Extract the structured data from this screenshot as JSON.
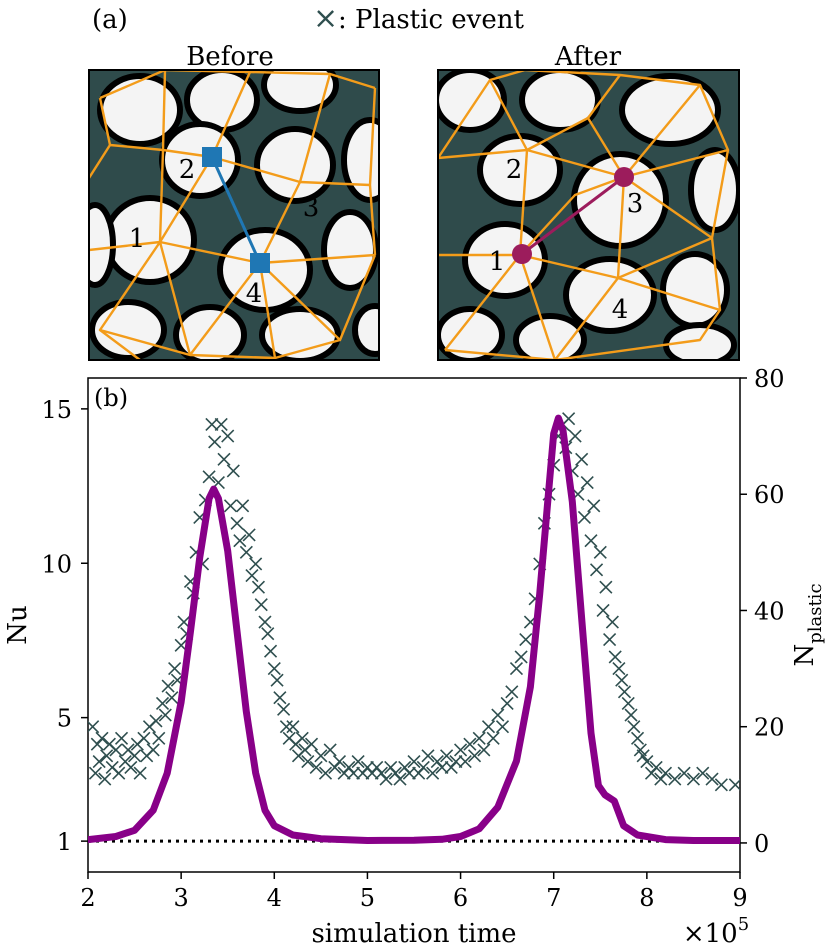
{
  "panel_a": {
    "label": "(a)",
    "legend_marker": "×",
    "legend_text": ":  Plastic event",
    "before": {
      "title": "Before",
      "cell_labels": [
        "1",
        "2",
        "3",
        "4"
      ],
      "highlight_pair": [
        "2",
        "4"
      ],
      "highlight_color": "#1f77b4"
    },
    "after": {
      "title": "After",
      "cell_labels": [
        "1",
        "2",
        "3",
        "4"
      ],
      "highlight_pair": [
        "1",
        "3"
      ],
      "highlight_color": "#9c1c5c"
    },
    "colors": {
      "foam": "#2f4b4b",
      "bubble": "#f4f4f4",
      "network": "#f39c1a"
    }
  },
  "chart_data": {
    "type": "line",
    "panel_label": "(b)",
    "xlabel": "simulation time",
    "x_multiplier": "×10^5",
    "ylabel_left": "Nu",
    "ylabel_right": "N_plastic",
    "xlim": [
      2,
      9
    ],
    "ylim_left": [
      0,
      16
    ],
    "ylim_right": [
      -5,
      80
    ],
    "xticks": [
      2,
      3,
      4,
      5,
      6,
      7,
      8,
      9
    ],
    "yticks_left": [
      1,
      5,
      10,
      15
    ],
    "yticks_right": [
      0,
      20,
      40,
      60,
      80
    ],
    "grid": false,
    "reference_line": {
      "y": 1,
      "style": "dotted",
      "color": "#000000"
    },
    "series": [
      {
        "axis": "left",
        "kind": "line",
        "color": "#880088",
        "points": [
          [
            2.0,
            1.05
          ],
          [
            2.3,
            1.15
          ],
          [
            2.5,
            1.35
          ],
          [
            2.7,
            2.0
          ],
          [
            2.85,
            3.2
          ],
          [
            3.0,
            5.5
          ],
          [
            3.1,
            7.8
          ],
          [
            3.2,
            10.2
          ],
          [
            3.3,
            12.1
          ],
          [
            3.35,
            12.4
          ],
          [
            3.4,
            12.1
          ],
          [
            3.5,
            10.4
          ],
          [
            3.6,
            7.8
          ],
          [
            3.7,
            5.2
          ],
          [
            3.8,
            3.2
          ],
          [
            3.9,
            2.0
          ],
          [
            4.0,
            1.5
          ],
          [
            4.2,
            1.2
          ],
          [
            4.5,
            1.08
          ],
          [
            5.0,
            1.02
          ],
          [
            5.5,
            1.03
          ],
          [
            5.8,
            1.06
          ],
          [
            6.0,
            1.15
          ],
          [
            6.2,
            1.4
          ],
          [
            6.4,
            2.1
          ],
          [
            6.6,
            3.6
          ],
          [
            6.75,
            6.0
          ],
          [
            6.85,
            9.0
          ],
          [
            6.95,
            12.5
          ],
          [
            7.0,
            14.2
          ],
          [
            7.05,
            14.7
          ],
          [
            7.1,
            14.3
          ],
          [
            7.2,
            12.0
          ],
          [
            7.3,
            8.2
          ],
          [
            7.4,
            4.5
          ],
          [
            7.48,
            2.8
          ],
          [
            7.55,
            2.5
          ],
          [
            7.65,
            2.3
          ],
          [
            7.75,
            1.5
          ],
          [
            7.9,
            1.2
          ],
          [
            8.2,
            1.05
          ],
          [
            8.5,
            1.02
          ],
          [
            9.0,
            1.02
          ]
        ]
      },
      {
        "axis": "right",
        "kind": "scatter",
        "marker": "x",
        "color": "#2f4f4f",
        "points": [
          [
            2.05,
            20
          ],
          [
            2.08,
            12
          ],
          [
            2.1,
            17
          ],
          [
            2.12,
            14
          ],
          [
            2.15,
            18
          ],
          [
            2.18,
            11
          ],
          [
            2.2,
            15
          ],
          [
            2.23,
            17
          ],
          [
            2.26,
            13
          ],
          [
            2.3,
            16
          ],
          [
            2.33,
            12
          ],
          [
            2.36,
            18
          ],
          [
            2.4,
            14
          ],
          [
            2.43,
            16
          ],
          [
            2.46,
            13
          ],
          [
            2.5,
            15
          ],
          [
            2.53,
            17
          ],
          [
            2.56,
            12
          ],
          [
            2.6,
            18
          ],
          [
            2.63,
            15
          ],
          [
            2.66,
            20
          ],
          [
            2.7,
            16
          ],
          [
            2.73,
            21
          ],
          [
            2.76,
            18
          ],
          [
            2.8,
            24
          ],
          [
            2.83,
            22
          ],
          [
            2.86,
            27
          ],
          [
            2.9,
            25
          ],
          [
            2.93,
            30
          ],
          [
            2.96,
            28
          ],
          [
            3.0,
            34
          ],
          [
            3.03,
            38
          ],
          [
            3.06,
            36
          ],
          [
            3.1,
            45
          ],
          [
            3.13,
            43
          ],
          [
            3.16,
            50
          ],
          [
            3.2,
            56
          ],
          [
            3.23,
            48
          ],
          [
            3.26,
            59
          ],
          [
            3.3,
            63
          ],
          [
            3.33,
            72
          ],
          [
            3.36,
            69
          ],
          [
            3.4,
            62
          ],
          [
            3.43,
            72
          ],
          [
            3.46,
            66
          ],
          [
            3.5,
            70
          ],
          [
            3.53,
            58
          ],
          [
            3.56,
            64
          ],
          [
            3.6,
            55
          ],
          [
            3.63,
            52
          ],
          [
            3.66,
            58
          ],
          [
            3.7,
            50
          ],
          [
            3.73,
            53
          ],
          [
            3.76,
            46
          ],
          [
            3.8,
            48
          ],
          [
            3.83,
            44
          ],
          [
            3.86,
            41
          ],
          [
            3.9,
            38
          ],
          [
            3.93,
            36
          ],
          [
            3.96,
            33
          ],
          [
            4.0,
            30
          ],
          [
            4.03,
            28
          ],
          [
            4.06,
            25
          ],
          [
            4.1,
            23
          ],
          [
            4.13,
            20
          ],
          [
            4.16,
            18
          ],
          [
            4.2,
            20
          ],
          [
            4.23,
            17
          ],
          [
            4.26,
            15
          ],
          [
            4.3,
            18
          ],
          [
            4.33,
            16
          ],
          [
            4.36,
            14
          ],
          [
            4.4,
            17
          ],
          [
            4.45,
            13
          ],
          [
            4.5,
            15
          ],
          [
            4.55,
            12
          ],
          [
            4.6,
            16
          ],
          [
            4.65,
            13
          ],
          [
            4.7,
            14
          ],
          [
            4.75,
            12
          ],
          [
            4.8,
            13
          ],
          [
            4.85,
            12
          ],
          [
            4.9,
            14
          ],
          [
            4.95,
            12
          ],
          [
            5.0,
            13
          ],
          [
            5.05,
            12
          ],
          [
            5.1,
            13
          ],
          [
            5.15,
            12
          ],
          [
            5.2,
            11
          ],
          [
            5.25,
            13
          ],
          [
            5.3,
            12
          ],
          [
            5.35,
            11
          ],
          [
            5.4,
            13
          ],
          [
            5.45,
            12
          ],
          [
            5.5,
            14
          ],
          [
            5.55,
            12
          ],
          [
            5.6,
            13
          ],
          [
            5.65,
            15
          ],
          [
            5.7,
            12
          ],
          [
            5.75,
            14
          ],
          [
            5.8,
            13
          ],
          [
            5.85,
            15
          ],
          [
            5.9,
            13
          ],
          [
            5.95,
            14
          ],
          [
            6.0,
            16
          ],
          [
            6.05,
            14
          ],
          [
            6.1,
            17
          ],
          [
            6.15,
            15
          ],
          [
            6.2,
            18
          ],
          [
            6.25,
            16
          ],
          [
            6.3,
            20
          ],
          [
            6.35,
            18
          ],
          [
            6.4,
            22
          ],
          [
            6.45,
            20
          ],
          [
            6.5,
            24
          ],
          [
            6.55,
            26
          ],
          [
            6.6,
            30
          ],
          [
            6.65,
            32
          ],
          [
            6.7,
            35
          ],
          [
            6.75,
            38
          ],
          [
            6.8,
            42
          ],
          [
            6.85,
            48
          ],
          [
            6.9,
            55
          ],
          [
            6.95,
            60
          ],
          [
            7.0,
            65
          ],
          [
            7.05,
            70
          ],
          [
            7.1,
            72
          ],
          [
            7.13,
            68
          ],
          [
            7.16,
            73
          ],
          [
            7.2,
            64
          ],
          [
            7.23,
            70
          ],
          [
            7.26,
            60
          ],
          [
            7.3,
            66
          ],
          [
            7.33,
            56
          ],
          [
            7.36,
            62
          ],
          [
            7.4,
            52
          ],
          [
            7.43,
            58
          ],
          [
            7.46,
            47
          ],
          [
            7.5,
            50
          ],
          [
            7.53,
            40
          ],
          [
            7.56,
            44
          ],
          [
            7.6,
            35
          ],
          [
            7.63,
            38
          ],
          [
            7.66,
            32
          ],
          [
            7.7,
            30
          ],
          [
            7.73,
            28
          ],
          [
            7.76,
            26
          ],
          [
            7.8,
            24
          ],
          [
            7.83,
            22
          ],
          [
            7.86,
            20
          ],
          [
            7.9,
            18
          ],
          [
            7.93,
            16
          ],
          [
            7.96,
            15
          ],
          [
            8.0,
            14
          ],
          [
            8.05,
            12
          ],
          [
            8.1,
            13
          ],
          [
            8.15,
            11
          ],
          [
            8.2,
            12
          ],
          [
            8.3,
            11
          ],
          [
            8.4,
            12
          ],
          [
            8.5,
            11
          ],
          [
            8.6,
            12
          ],
          [
            8.7,
            11
          ],
          [
            8.8,
            10
          ],
          [
            8.95,
            10
          ]
        ]
      }
    ]
  }
}
